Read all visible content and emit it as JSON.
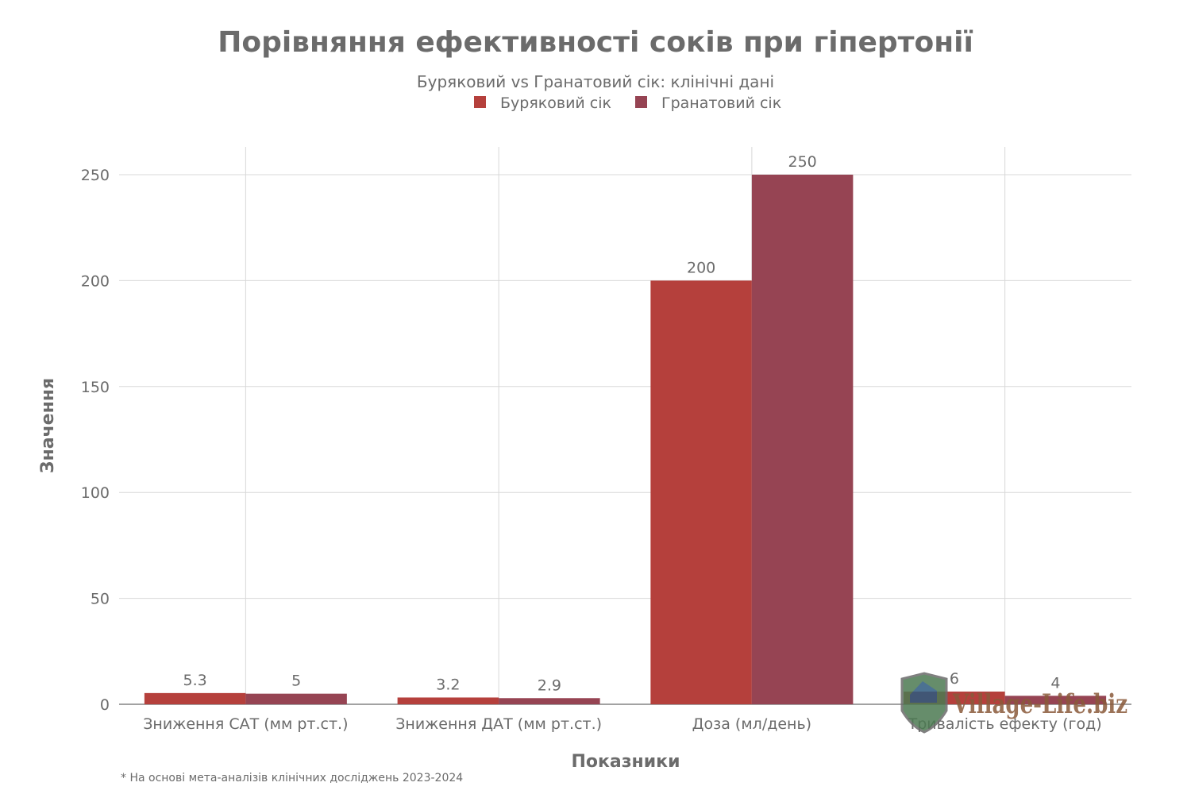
{
  "chart_data": {
    "type": "bar",
    "title": "Порівняння ефективності соків при гіпертонії",
    "subtitle": "Буряковий vs Гранатовий сік: клінічні дані",
    "xlabel": "Показники",
    "ylabel": "Значення",
    "categories": [
      "Зниження САТ (мм рт.ст.)",
      "Зниження ДАТ (мм рт.ст.)",
      "Доза (мл/день)",
      "Тривалість ефекту (год)"
    ],
    "series": [
      {
        "name": "Буряковий сік",
        "values": [
          5.3,
          3.2,
          200,
          6
        ],
        "labels": [
          "5.3",
          "3.2",
          "200",
          "6"
        ],
        "color": "#b5403c"
      },
      {
        "name": "Гранатовий сік",
        "values": [
          5,
          2.9,
          250,
          4
        ],
        "labels": [
          "5",
          "2.9",
          "250",
          "4"
        ],
        "color": "#964453"
      }
    ],
    "ylim": [
      0,
      262
    ],
    "yticks": [
      0,
      50,
      100,
      150,
      200,
      250
    ],
    "grid": true,
    "legend_placement": "top-center",
    "footnote": "* На основі мета-аналізів клінічних досліджень 2023-2024"
  },
  "watermark": {
    "text": "Village-Life.biz"
  }
}
